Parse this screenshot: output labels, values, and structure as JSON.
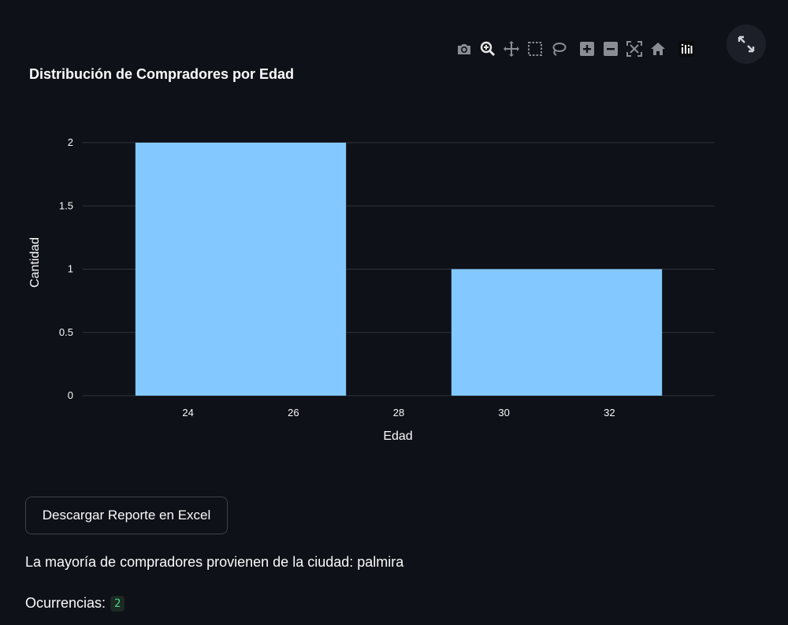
{
  "toolbar": {
    "icons": [
      "camera-icon",
      "zoom-icon",
      "pan-icon",
      "box-select-icon",
      "lasso-select-icon",
      "zoom-in-icon",
      "zoom-out-icon",
      "autoscale-icon",
      "reset-axes-icon",
      "plotly-logo-icon"
    ],
    "fullscreen_icon": "expand-icon"
  },
  "chart_data": {
    "type": "bar",
    "title": "Distribución de Compradores por Edad",
    "xlabel": "Edad",
    "ylabel": "Cantidad",
    "bins": [
      {
        "x0": 23,
        "x1": 27,
        "value": 2
      },
      {
        "x0": 29,
        "x1": 33,
        "value": 1
      }
    ],
    "xticks": [
      "24",
      "26",
      "28",
      "30",
      "32"
    ],
    "yticks": [
      "0",
      "0.5",
      "1",
      "1.5",
      "2"
    ],
    "xlim": [
      22,
      34
    ],
    "ylim": [
      0,
      2
    ],
    "grid": true,
    "bar_color": "#83c9ff",
    "grid_color": "#31333f"
  },
  "download_button": {
    "label": "Descargar Reporte en Excel"
  },
  "city_text": "La mayoría de compradores provienen de la ciudad: palmira",
  "occurrences": {
    "label": "Ocurrencias:",
    "value": "2"
  }
}
